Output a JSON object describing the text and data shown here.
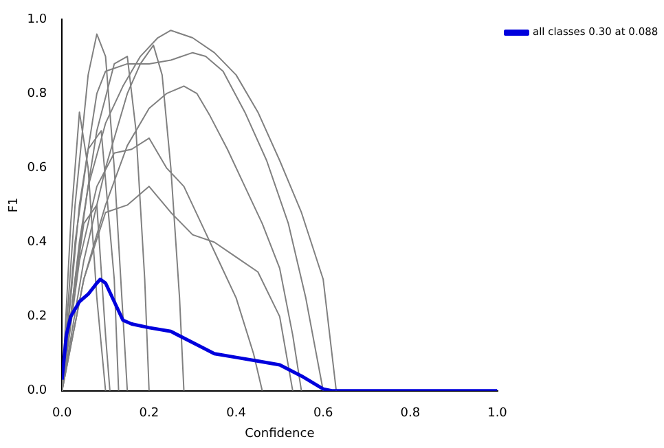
{
  "chart_data": {
    "type": "line",
    "xlabel": "Confidence",
    "ylabel": "F1",
    "xlim": [
      0,
      1
    ],
    "ylim": [
      0,
      1
    ],
    "xticks": [
      {
        "value": 0,
        "label": "0.0"
      },
      0.2,
      0.4,
      0.6,
      0.8,
      {
        "value": 1,
        "label": "1.0"
      }
    ],
    "yticks": [
      {
        "value": 0,
        "label": "0.0"
      },
      0.2,
      0.4,
      0.6,
      0.8,
      {
        "value": 1,
        "label": "1.0"
      }
    ],
    "grid": false,
    "legend": "right",
    "marker": "none",
    "line_style": "solid",
    "series": [
      {
        "color": "#808080",
        "x": [
          0,
          0.03,
          0.06,
          0.1,
          0.14,
          0.18,
          0.22,
          0.25,
          0.3,
          0.35,
          0.4,
          0.45,
          0.5,
          0.55,
          0.6,
          0.62,
          0.63
        ],
        "values": [
          0,
          0.3,
          0.55,
          0.72,
          0.82,
          0.9,
          0.95,
          0.97,
          0.95,
          0.91,
          0.85,
          0.75,
          0.62,
          0.48,
          0.3,
          0.1,
          0
        ]
      },
      {
        "color": "#808080",
        "x": [
          0,
          0.04,
          0.08,
          0.1,
          0.15,
          0.2,
          0.25,
          0.3,
          0.33,
          0.37,
          0.42,
          0.47,
          0.52,
          0.56,
          0.6
        ],
        "values": [
          0,
          0.5,
          0.8,
          0.86,
          0.88,
          0.88,
          0.89,
          0.91,
          0.9,
          0.86,
          0.75,
          0.62,
          0.45,
          0.25,
          0
        ]
      },
      {
        "color": "#808080",
        "x": [
          0,
          0.05,
          0.1,
          0.15,
          0.2,
          0.24,
          0.28,
          0.31,
          0.34,
          0.38,
          0.42,
          0.46,
          0.5,
          0.53,
          0.55
        ],
        "values": [
          0,
          0.3,
          0.5,
          0.66,
          0.76,
          0.8,
          0.82,
          0.8,
          0.74,
          0.65,
          0.55,
          0.45,
          0.33,
          0.15,
          0
        ]
      },
      {
        "color": "#808080",
        "x": [
          0,
          0.04,
          0.08,
          0.12,
          0.16,
          0.2,
          0.24,
          0.28,
          0.32,
          0.36,
          0.4,
          0.44,
          0.46
        ],
        "values": [
          0,
          0.35,
          0.55,
          0.64,
          0.65,
          0.68,
          0.6,
          0.55,
          0.45,
          0.35,
          0.25,
          0.1,
          0
        ]
      },
      {
        "color": "#808080",
        "x": [
          0,
          0.05,
          0.1,
          0.15,
          0.2,
          0.25,
          0.3,
          0.35,
          0.4,
          0.45,
          0.5,
          0.53
        ],
        "values": [
          0,
          0.3,
          0.48,
          0.5,
          0.55,
          0.48,
          0.42,
          0.4,
          0.36,
          0.32,
          0.2,
          0
        ]
      },
      {
        "color": "#808080",
        "x": [
          0,
          0.03,
          0.06,
          0.08,
          0.1,
          0.12,
          0.14,
          0.15
        ],
        "values": [
          0,
          0.5,
          0.85,
          0.96,
          0.9,
          0.6,
          0.2,
          0
        ]
      },
      {
        "color": "#808080",
        "x": [
          0,
          0.05,
          0.1,
          0.15,
          0.18,
          0.21,
          0.23,
          0.25,
          0.27,
          0.28
        ],
        "values": [
          0,
          0.35,
          0.6,
          0.8,
          0.88,
          0.93,
          0.85,
          0.6,
          0.25,
          0
        ]
      },
      {
        "color": "#808080",
        "x": [
          0,
          0.04,
          0.08,
          0.12,
          0.15,
          0.17,
          0.19,
          0.2
        ],
        "values": [
          0,
          0.4,
          0.7,
          0.88,
          0.9,
          0.7,
          0.3,
          0
        ]
      },
      {
        "color": "#808080",
        "x": [
          0,
          0.02,
          0.04,
          0.06,
          0.08,
          0.1
        ],
        "values": [
          0,
          0.45,
          0.75,
          0.6,
          0.25,
          0
        ]
      },
      {
        "color": "#808080",
        "x": [
          0,
          0.03,
          0.06,
          0.09,
          0.12,
          0.13
        ],
        "values": [
          0,
          0.4,
          0.65,
          0.7,
          0.3,
          0
        ]
      },
      {
        "color": "#808080",
        "x": [
          0,
          0.02,
          0.05,
          0.08,
          0.1,
          0.11
        ],
        "values": [
          0,
          0.2,
          0.45,
          0.5,
          0.15,
          0
        ]
      },
      {
        "name": "all classes 0.30 at 0.088",
        "color": "#0000dd",
        "x": [
          0,
          0.01,
          0.02,
          0.04,
          0.06,
          0.08,
          0.088,
          0.1,
          0.12,
          0.14,
          0.16,
          0.2,
          0.25,
          0.3,
          0.35,
          0.4,
          0.45,
          0.5,
          0.55,
          0.6,
          0.62,
          1
        ],
        "values": [
          0.03,
          0.15,
          0.2,
          0.24,
          0.26,
          0.29,
          0.3,
          0.29,
          0.24,
          0.19,
          0.18,
          0.17,
          0.16,
          0.13,
          0.1,
          0.09,
          0.08,
          0.07,
          0.04,
          0.005,
          0,
          0
        ]
      }
    ]
  }
}
